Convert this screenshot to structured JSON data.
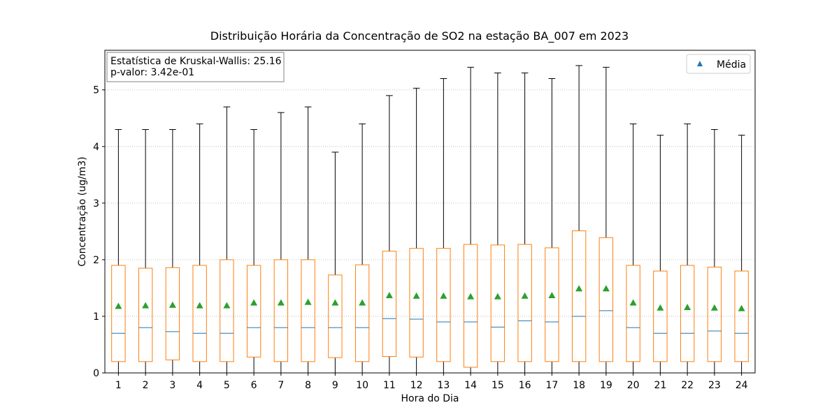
{
  "chart_data": {
    "type": "box",
    "title": "Distribuição Horária da Concentração de SO2 na estação BA_007 em 2023",
    "xlabel": "Hora do Dia",
    "ylabel": "Concentração (ug/m3)",
    "ylim": [
      0,
      5.7
    ],
    "yticks": [
      0,
      1,
      2,
      3,
      4,
      5
    ],
    "grid": "y-dotted",
    "legend": {
      "position": "top-right",
      "entries": [
        {
          "label": "Média",
          "marker": "triangle",
          "color": "#1f77b4"
        }
      ]
    },
    "annotation": {
      "position": "top-left",
      "lines": [
        "Estatística de Kruskal-Wallis: 25.16",
        "p-valor: 3.42e-01"
      ]
    },
    "colors": {
      "box": "#ff7f0e",
      "median": "#1f77b4",
      "mean": "#2ca02c",
      "whisker": "#000000",
      "grid": "#b0b0b0"
    },
    "categories": [
      "1",
      "2",
      "3",
      "4",
      "5",
      "6",
      "7",
      "8",
      "9",
      "10",
      "11",
      "12",
      "13",
      "14",
      "15",
      "16",
      "17",
      "18",
      "19",
      "20",
      "21",
      "22",
      "23",
      "24"
    ],
    "boxes": [
      {
        "whislo": 0,
        "q1": 0.2,
        "med": 0.7,
        "q3": 1.9,
        "whishi": 4.3,
        "mean": 1.18
      },
      {
        "whislo": 0,
        "q1": 0.2,
        "med": 0.8,
        "q3": 1.85,
        "whishi": 4.3,
        "mean": 1.19
      },
      {
        "whislo": 0,
        "q1": 0.23,
        "med": 0.73,
        "q3": 1.86,
        "whishi": 4.3,
        "mean": 1.2
      },
      {
        "whislo": 0,
        "q1": 0.2,
        "med": 0.7,
        "q3": 1.9,
        "whishi": 4.4,
        "mean": 1.19
      },
      {
        "whislo": 0,
        "q1": 0.2,
        "med": 0.7,
        "q3": 2.0,
        "whishi": 4.7,
        "mean": 1.19
      },
      {
        "whislo": 0,
        "q1": 0.28,
        "med": 0.8,
        "q3": 1.9,
        "whishi": 4.3,
        "mean": 1.24
      },
      {
        "whislo": 0,
        "q1": 0.2,
        "med": 0.8,
        "q3": 2.0,
        "whishi": 4.6,
        "mean": 1.24
      },
      {
        "whislo": 0,
        "q1": 0.2,
        "med": 0.8,
        "q3": 2.0,
        "whishi": 4.7,
        "mean": 1.25
      },
      {
        "whislo": 0,
        "q1": 0.27,
        "med": 0.8,
        "q3": 1.73,
        "whishi": 3.9,
        "mean": 1.24
      },
      {
        "whislo": 0,
        "q1": 0.2,
        "med": 0.8,
        "q3": 1.91,
        "whishi": 4.4,
        "mean": 1.24
      },
      {
        "whislo": 0,
        "q1": 0.29,
        "med": 0.96,
        "q3": 2.15,
        "whishi": 4.9,
        "mean": 1.37
      },
      {
        "whislo": 0,
        "q1": 0.28,
        "med": 0.95,
        "q3": 2.2,
        "whishi": 5.03,
        "mean": 1.36
      },
      {
        "whislo": 0,
        "q1": 0.2,
        "med": 0.9,
        "q3": 2.2,
        "whishi": 5.2,
        "mean": 1.36
      },
      {
        "whislo": 0,
        "q1": 0.1,
        "med": 0.9,
        "q3": 2.27,
        "whishi": 5.4,
        "mean": 1.35
      },
      {
        "whislo": 0,
        "q1": 0.2,
        "med": 0.81,
        "q3": 2.26,
        "whishi": 5.3,
        "mean": 1.35
      },
      {
        "whislo": 0,
        "q1": 0.2,
        "med": 0.92,
        "q3": 2.27,
        "whishi": 5.3,
        "mean": 1.36
      },
      {
        "whislo": 0,
        "q1": 0.2,
        "med": 0.9,
        "q3": 2.21,
        "whishi": 5.2,
        "mean": 1.37
      },
      {
        "whislo": 0,
        "q1": 0.2,
        "med": 1.0,
        "q3": 2.51,
        "whishi": 5.43,
        "mean": 1.49
      },
      {
        "whislo": 0,
        "q1": 0.2,
        "med": 1.1,
        "q3": 2.39,
        "whishi": 5.4,
        "mean": 1.49
      },
      {
        "whislo": 0,
        "q1": 0.2,
        "med": 0.8,
        "q3": 1.9,
        "whishi": 4.4,
        "mean": 1.24
      },
      {
        "whislo": 0,
        "q1": 0.2,
        "med": 0.7,
        "q3": 1.8,
        "whishi": 4.2,
        "mean": 1.15
      },
      {
        "whislo": 0,
        "q1": 0.2,
        "med": 0.7,
        "q3": 1.9,
        "whishi": 4.4,
        "mean": 1.16
      },
      {
        "whislo": 0,
        "q1": 0.2,
        "med": 0.74,
        "q3": 1.87,
        "whishi": 4.3,
        "mean": 1.15
      },
      {
        "whislo": 0,
        "q1": 0.2,
        "med": 0.7,
        "q3": 1.8,
        "whishi": 4.2,
        "mean": 1.14
      }
    ]
  }
}
